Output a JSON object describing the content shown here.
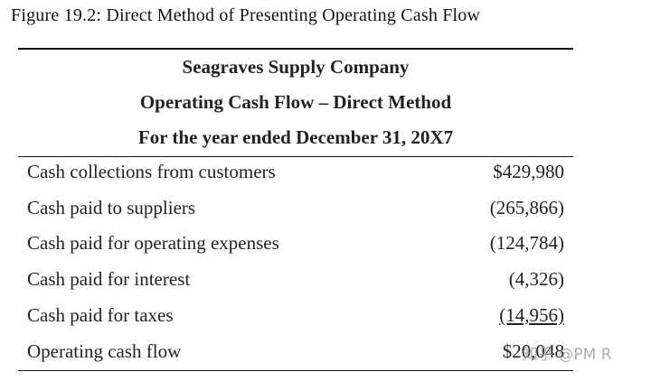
{
  "figure_title": "Figure 19.2: Direct Method of Presenting Operating Cash Flow",
  "header": [
    "Seagraves Supply Company",
    "Operating Cash Flow – Direct Method",
    "For the year ended December 31, 20X7"
  ],
  "table": {
    "rows": [
      [
        "Cash collections from customers",
        "$429,980"
      ],
      [
        "Cash paid to suppliers",
        "(265,866)"
      ],
      [
        "Cash paid for operating expenses",
        "(124,784)"
      ],
      [
        "Cash paid for interest",
        "(4,326)"
      ],
      [
        "Cash paid for taxes",
        "(14,956)"
      ],
      [
        "Operating cash flow",
        "$20,048"
      ]
    ]
  },
  "watermark": "知乎 @PM R"
}
